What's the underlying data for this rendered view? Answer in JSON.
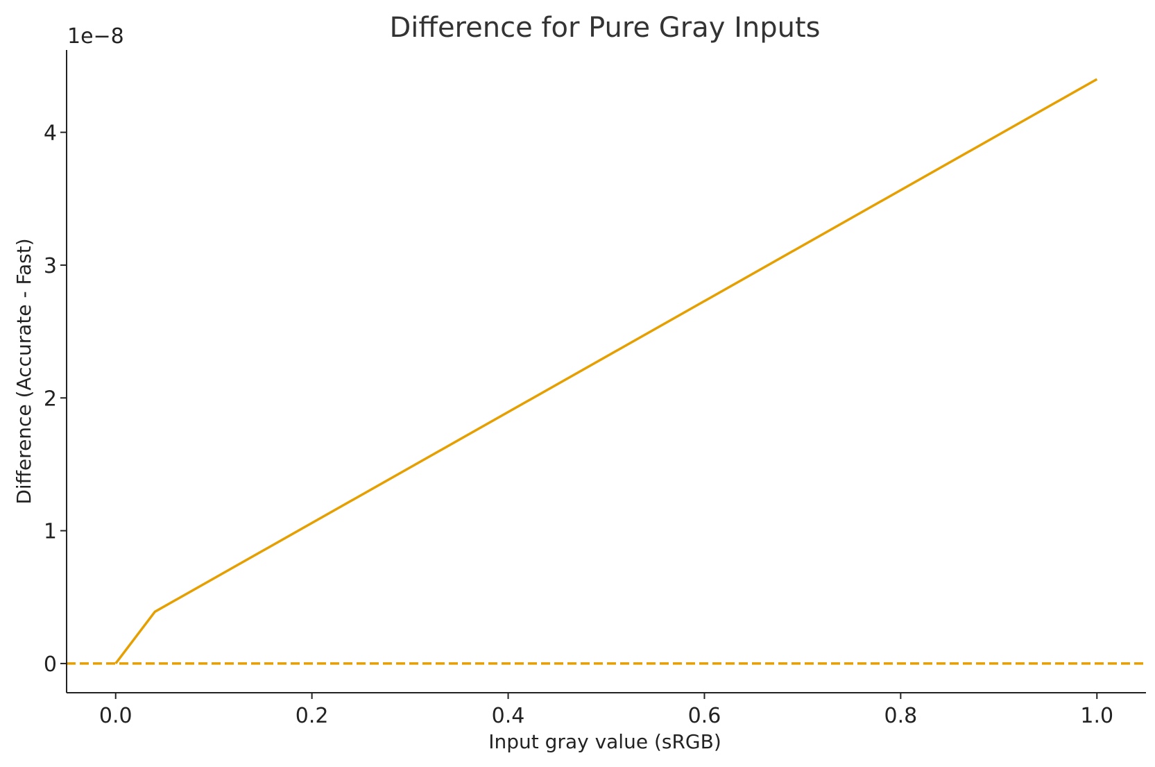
{
  "chart_data": {
    "type": "line",
    "title": "Difference for Pure Gray Inputs",
    "xlabel": "Input gray value (sRGB)",
    "ylabel": "Difference (Accurate - Fast)",
    "y_offset_label": "1e−8",
    "xlim": [
      -0.05,
      1.05
    ],
    "ylim": [
      -0.22,
      4.62
    ],
    "x_ticks": [
      0.0,
      0.2,
      0.4,
      0.6,
      0.8,
      1.0
    ],
    "x_tick_labels": [
      "0.0",
      "0.2",
      "0.4",
      "0.6",
      "0.8",
      "1.0"
    ],
    "y_ticks": [
      0,
      1,
      2,
      3,
      4
    ],
    "y_tick_labels": [
      "0",
      "1",
      "2",
      "3",
      "4"
    ],
    "grid": false,
    "series": [
      {
        "x": [
          0.0,
          0.04,
          1.0
        ],
        "y": [
          0.0,
          0.39,
          4.4
        ],
        "color": "#E69F00",
        "style": "solid"
      }
    ],
    "reference_lines": [
      {
        "orientation": "horizontal",
        "y": 0,
        "color": "#E69F00",
        "style": "dashed"
      }
    ]
  }
}
